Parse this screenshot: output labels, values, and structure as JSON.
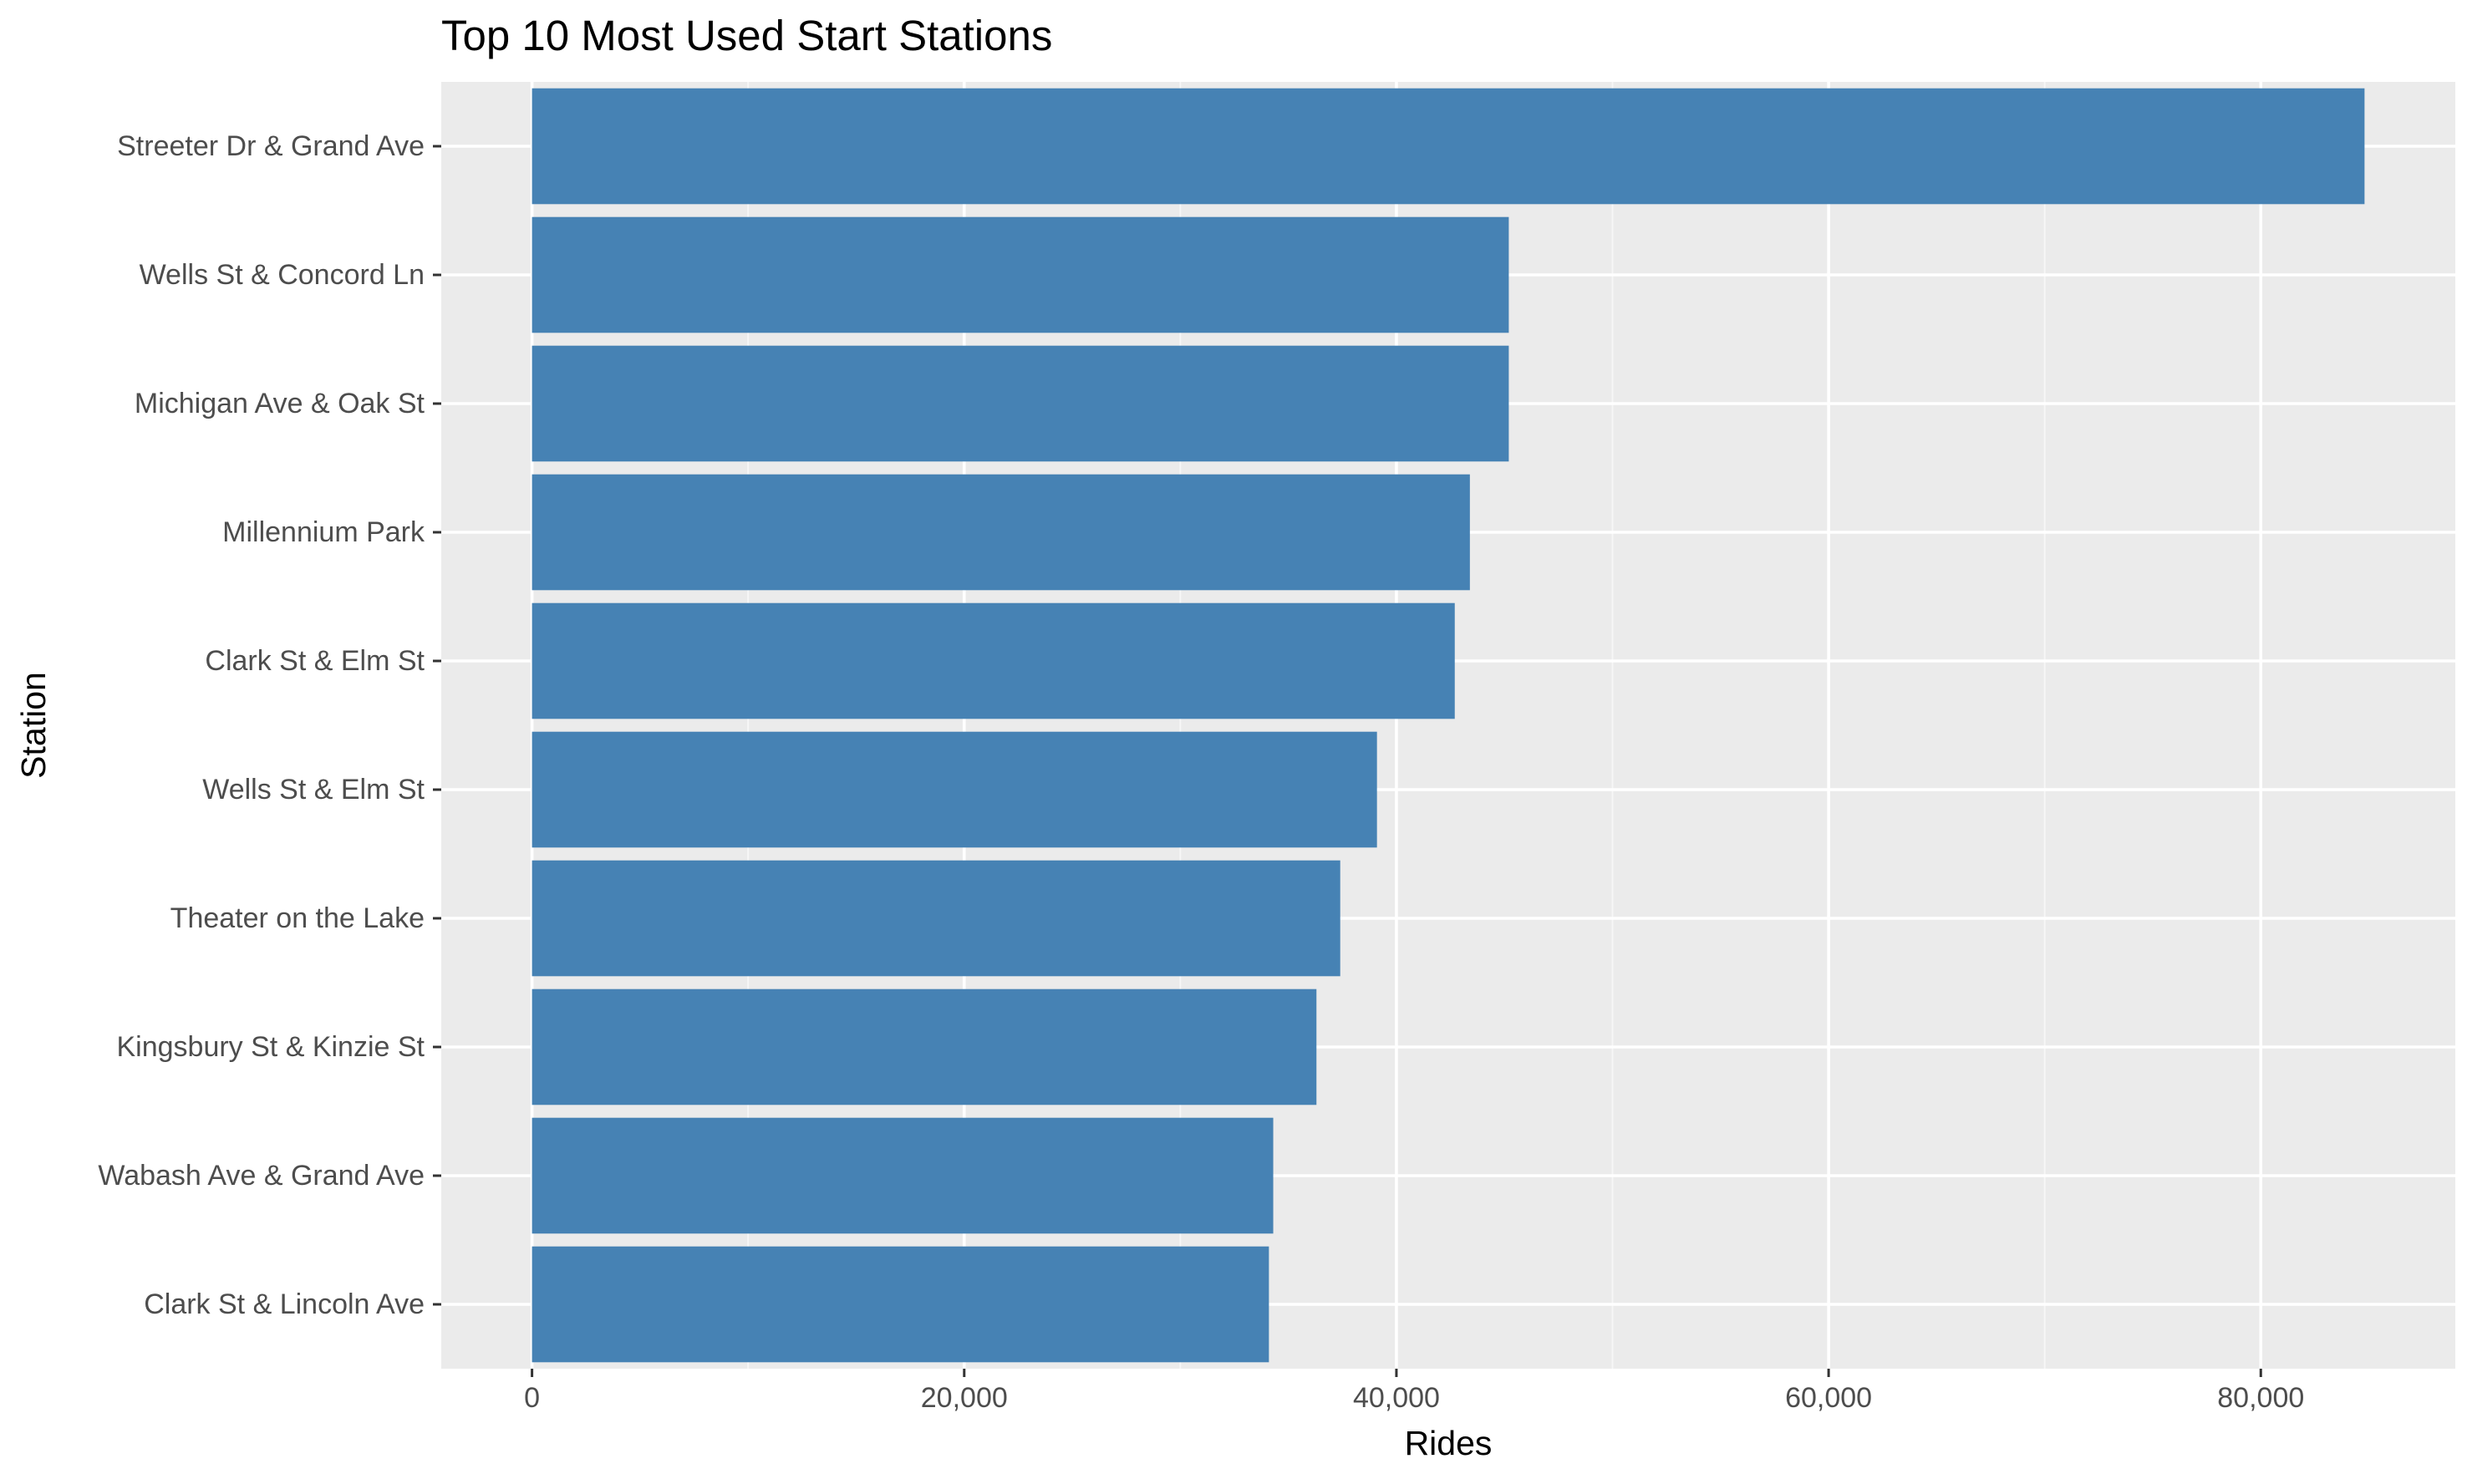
{
  "chart_data": {
    "type": "bar",
    "orientation": "horizontal",
    "title": "Top 10 Most Used Start Stations",
    "xlabel": "Rides",
    "ylabel": "Station",
    "categories": [
      "Streeter Dr & Grand Ave",
      "Wells St & Concord Ln",
      "Michigan Ave & Oak St",
      "Millennium Park",
      "Clark St & Elm St",
      "Wells St & Elm St",
      "Theater on the Lake",
      "Kingsbury St & Kinzie St",
      "Wabash Ave & Grand Ave",
      "Clark St & Lincoln Ave"
    ],
    "values": [
      84800,
      45200,
      45200,
      43400,
      42700,
      39100,
      37400,
      36300,
      34300,
      34100
    ],
    "xlim": [
      -4200,
      89000
    ],
    "x_ticks": [
      0,
      20000,
      40000,
      60000,
      80000
    ],
    "x_tick_labels": [
      "0",
      "20,000",
      "40,000",
      "60,000",
      "80,000"
    ],
    "grid": true,
    "legend": "none",
    "colors": {
      "bar": "#4682b4",
      "panel": "#ebebeb",
      "grid_major": "#ffffff",
      "grid_minor": "#f7f7f7",
      "tick_mark": "#333333",
      "tick_label": "#4d4d4d"
    }
  }
}
